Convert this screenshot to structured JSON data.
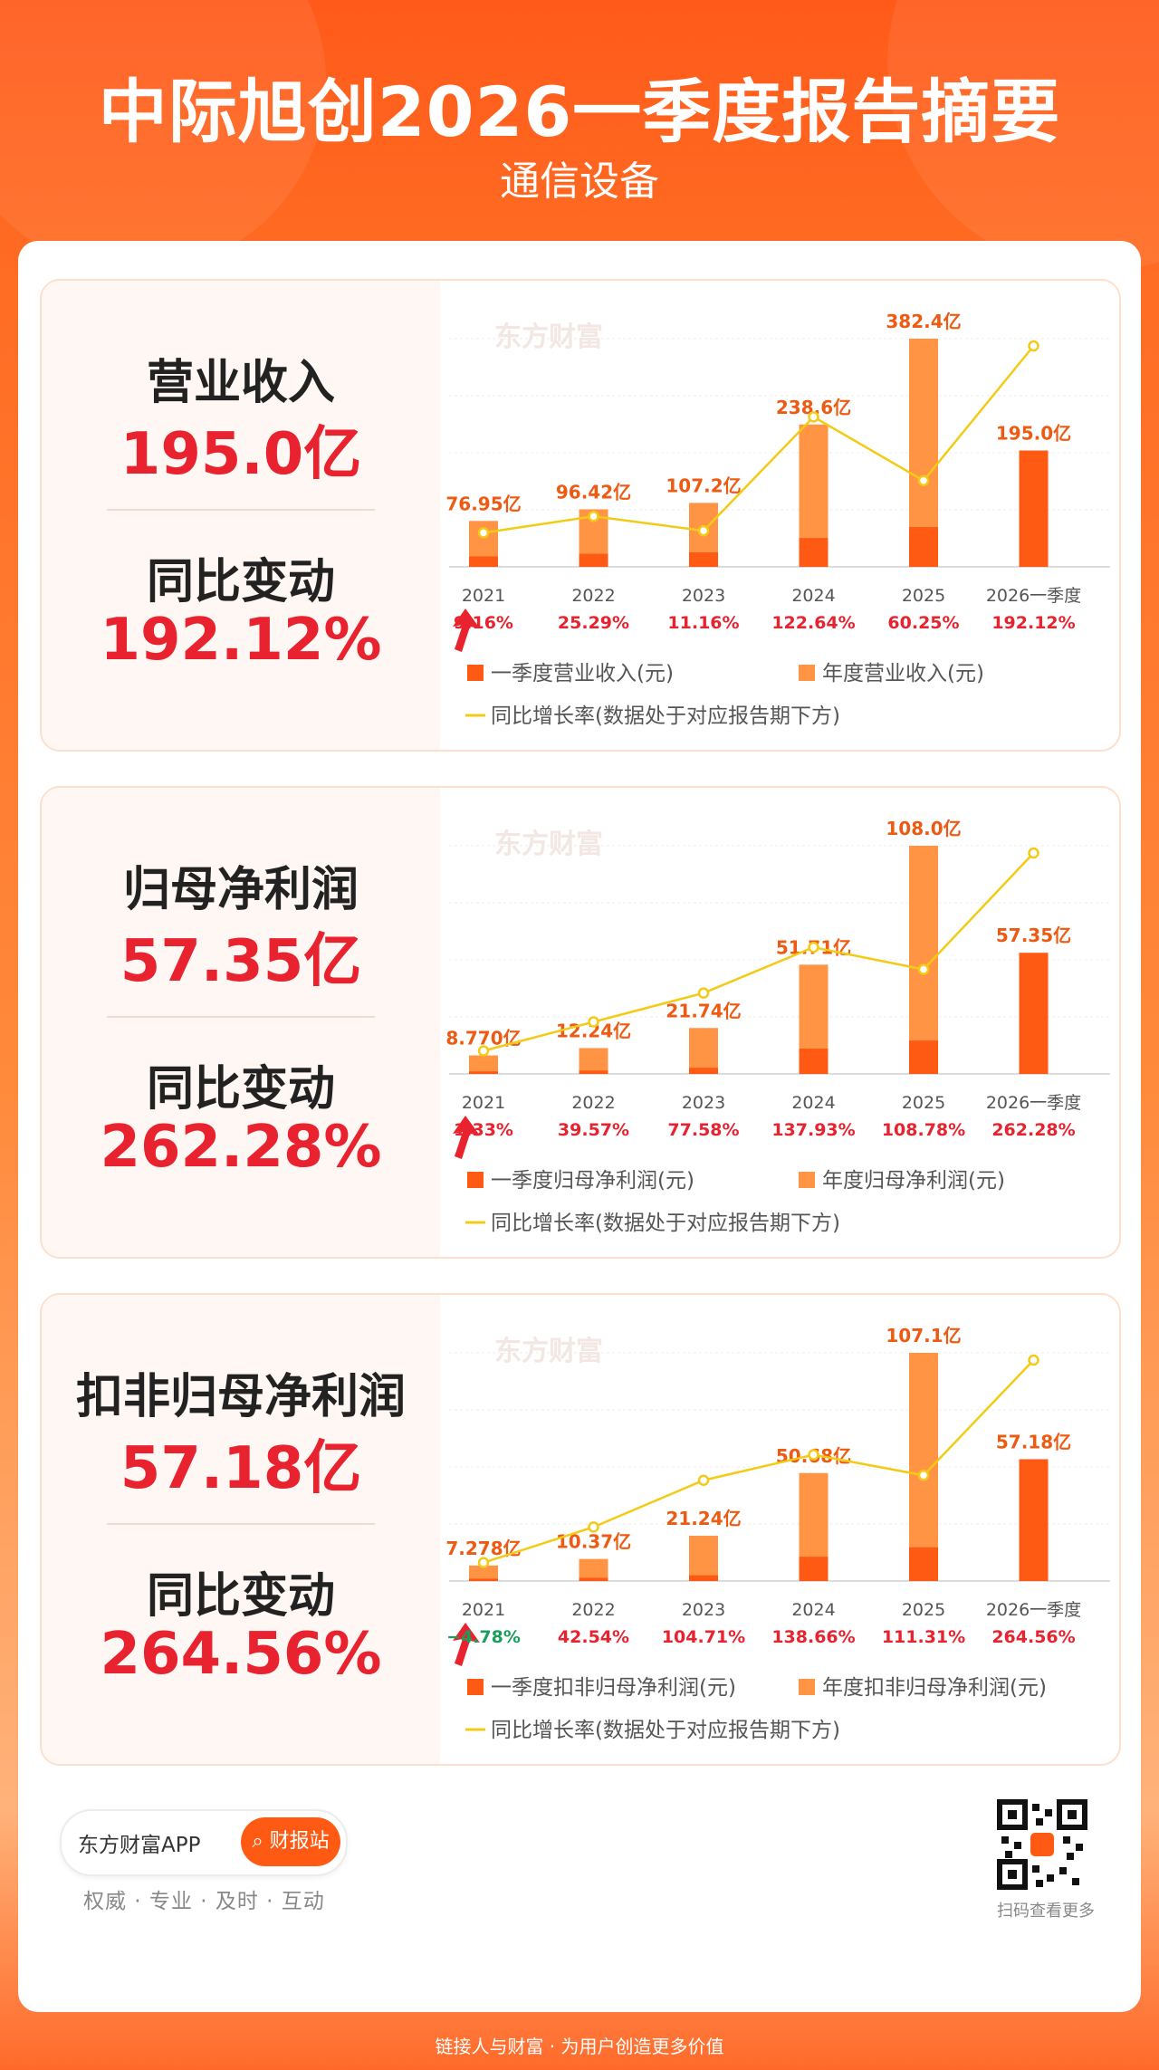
{
  "header": {
    "title": "中际旭创2026一季度报告摘要",
    "subtitle": "通信设备"
  },
  "watermark": "东方财富",
  "colors": {
    "q1_bar": "#ff5a14",
    "annual_bar": "#ff9445",
    "yoy_line": "#f3cb16",
    "accent_red": "#e8222e",
    "negative_green": "#1a9e5c"
  },
  "panels": [
    {
      "metric": "营业收入",
      "value": "195.0亿",
      "change_label": "同比变动",
      "change_value": "192.12%",
      "chart_data": {
        "type": "bar",
        "categories": [
          "2021",
          "2022",
          "2023",
          "2024",
          "2025",
          "2026一季度"
        ],
        "series": [
          {
            "name": "一季度营业收入(元)",
            "values": [
              17.5,
              21.9,
              24.3,
              48.4,
              66.7,
              195.0
            ]
          },
          {
            "name": "年度营业收入(元)",
            "values": [
              76.95,
              96.42,
              107.2,
              238.6,
              382.4,
              null
            ]
          }
        ],
        "bar_labels": [
          "76.95亿",
          "96.42亿",
          "107.2亿",
          "238.6亿",
          "382.4亿",
          "195.0亿"
        ],
        "yoy": {
          "name": "同比增长率(数据处于对应报告期下方)",
          "values": [
            9.16,
            25.29,
            11.16,
            122.64,
            60.25,
            192.12
          ],
          "labels": [
            "9.16%",
            "25.29%",
            "11.16%",
            "122.64%",
            "60.25%",
            "192.12%"
          ]
        },
        "ylim": [
          0,
          382.4
        ]
      }
    },
    {
      "metric": "归母净利润",
      "value": "57.35亿",
      "change_label": "同比变动",
      "change_value": "262.28%",
      "chart_data": {
        "type": "bar",
        "categories": [
          "2021",
          "2022",
          "2023",
          "2024",
          "2025",
          "2026一季度"
        ],
        "series": [
          {
            "name": "一季度归母净利润(元)",
            "values": [
              1.2,
              1.6,
              2.9,
              12.0,
              15.8,
              57.35
            ]
          },
          {
            "name": "年度归母净利润(元)",
            "values": [
              8.77,
              12.24,
              21.74,
              51.71,
              108.0,
              null
            ]
          }
        ],
        "bar_labels": [
          "8.770亿",
          "12.24亿",
          "21.74亿",
          "51.71亿",
          "108.0亿",
          "57.35亿"
        ],
        "yoy": {
          "name": "同比增长率(数据处于对应报告期下方)",
          "values": [
            1.33,
            39.57,
            77.58,
            137.93,
            108.78,
            262.28
          ],
          "labels": [
            "1.33%",
            "39.57%",
            "77.58%",
            "137.93%",
            "108.78%",
            "262.28%"
          ]
        },
        "ylim": [
          0,
          108.0
        ]
      }
    },
    {
      "metric": "扣非归母净利润",
      "value": "57.18亿",
      "change_label": "同比变动",
      "change_value": "264.56%",
      "chart_data": {
        "type": "bar",
        "categories": [
          "2021",
          "2022",
          "2023",
          "2024",
          "2025",
          "2026一季度"
        ],
        "series": [
          {
            "name": "一季度扣非归母净利润(元)",
            "values": [
              1.1,
              1.5,
              2.7,
              11.4,
              15.8,
              57.18
            ]
          },
          {
            "name": "年度扣非归母净利润(元)",
            "values": [
              7.278,
              10.37,
              21.24,
              50.68,
              107.1,
              null
            ]
          }
        ],
        "bar_labels": [
          "7.278亿",
          "10.37亿",
          "21.24亿",
          "50.68亿",
          "107.1亿",
          "57.18亿"
        ],
        "yoy": {
          "name": "同比增长率(数据处于对应报告期下方)",
          "values": [
            -4.78,
            42.54,
            104.71,
            138.66,
            111.31,
            264.56
          ],
          "labels": [
            "−4.78%",
            "42.54%",
            "104.71%",
            "138.66%",
            "111.31%",
            "264.56%"
          ]
        },
        "ylim": [
          0,
          107.1
        ]
      }
    }
  ],
  "footer": {
    "brand": "东方财富APP",
    "button": "财报站",
    "slogan": "权威 · 专业 · 及时 · 互动",
    "qr_caption": "扫码查看更多",
    "tagline": "链接人与财富 · 为用户创造更多价值"
  }
}
